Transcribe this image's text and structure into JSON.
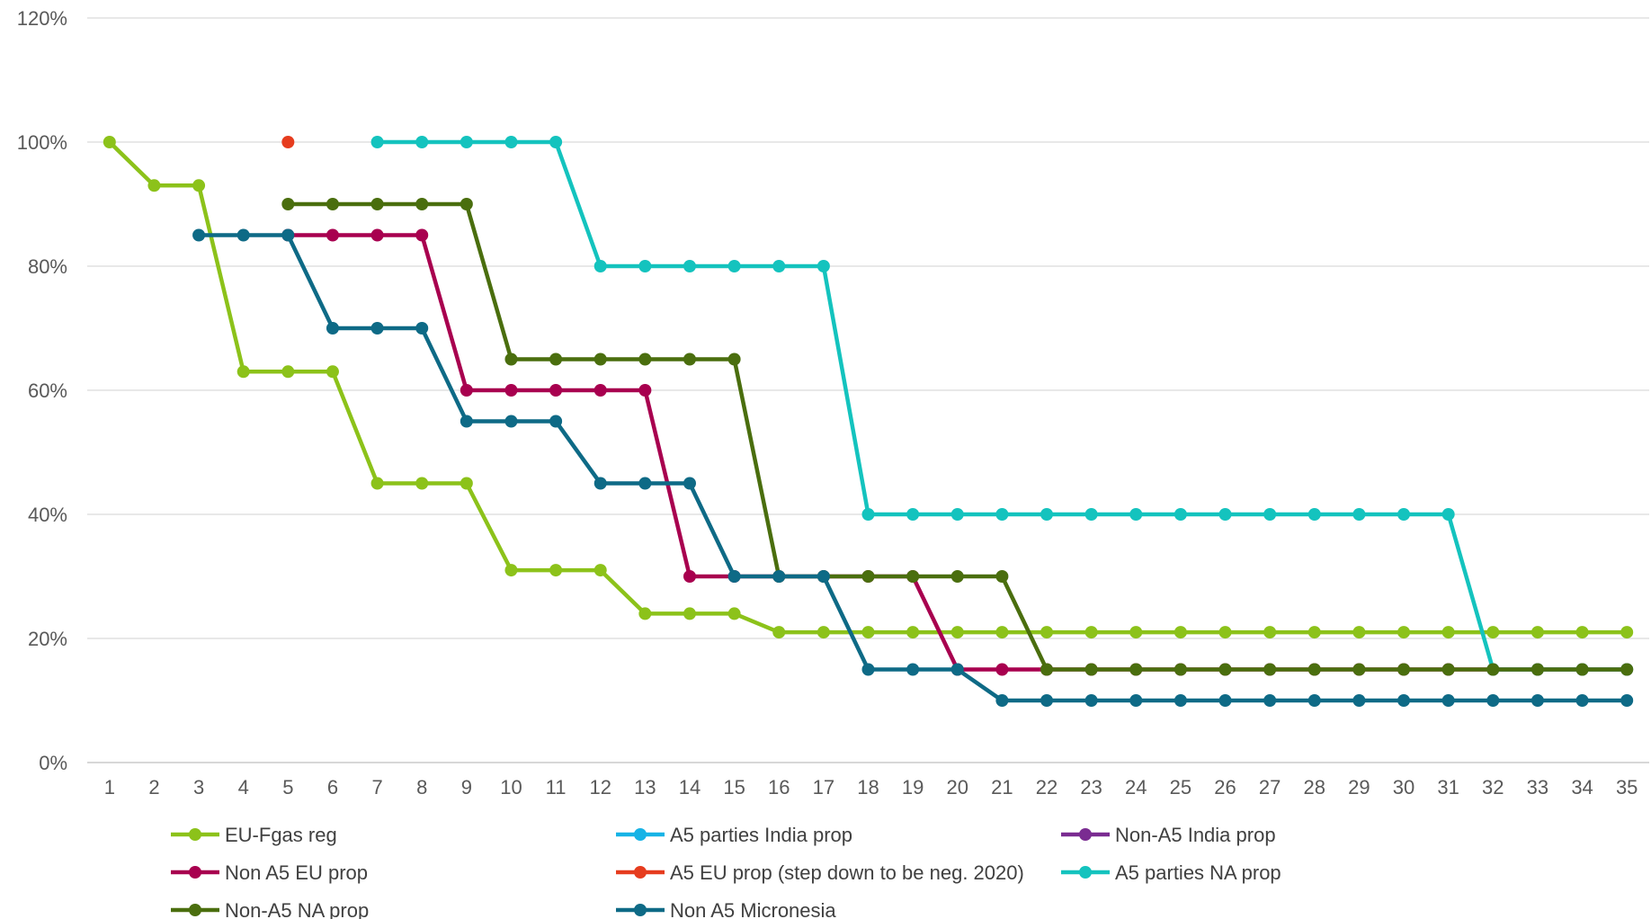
{
  "chart_data": {
    "type": "line",
    "x": [
      1,
      2,
      3,
      4,
      5,
      6,
      7,
      8,
      9,
      10,
      11,
      12,
      13,
      14,
      15,
      16,
      17,
      18,
      19,
      20,
      21,
      22,
      23,
      24,
      25,
      26,
      27,
      28,
      29,
      30,
      31,
      32,
      33,
      34,
      35
    ],
    "ylim": [
      0,
      120
    ],
    "y_ticks": [
      "0%",
      "20%",
      "40%",
      "60%",
      "80%",
      "100%",
      "120%"
    ],
    "x_ticks": [
      "1",
      "2",
      "3",
      "4",
      "5",
      "6",
      "7",
      "8",
      "9",
      "10",
      "11",
      "12",
      "13",
      "14",
      "15",
      "16",
      "17",
      "18",
      "19",
      "20",
      "21",
      "22",
      "23",
      "24",
      "25",
      "26",
      "27",
      "28",
      "29",
      "30",
      "31",
      "32",
      "33",
      "34",
      "35"
    ],
    "grid": true,
    "legend_position": "bottom",
    "series": [
      {
        "name": "EU-Fgas reg",
        "color": "#8cc21a",
        "values": [
          100,
          93,
          93,
          63,
          63,
          63,
          45,
          45,
          45,
          31,
          31,
          31,
          24,
          24,
          24,
          21,
          21,
          21,
          21,
          21,
          21,
          21,
          21,
          21,
          21,
          21,
          21,
          21,
          21,
          21,
          21,
          21,
          21,
          21,
          21
        ]
      },
      {
        "name": "A5 parties India prop",
        "color": "#17b3e6",
        "values": [
          null,
          null,
          null,
          null,
          null,
          null,
          null,
          null,
          null,
          null,
          null,
          null,
          null,
          null,
          null,
          null,
          null,
          null,
          null,
          null,
          null,
          null,
          null,
          null,
          null,
          null,
          null,
          null,
          null,
          null,
          null,
          null,
          null,
          null,
          null
        ]
      },
      {
        "name": "Non-A5 India prop",
        "color": "#7a2c91",
        "values": [
          null,
          null,
          null,
          null,
          null,
          null,
          null,
          null,
          null,
          null,
          null,
          null,
          null,
          null,
          null,
          null,
          null,
          null,
          null,
          null,
          null,
          null,
          null,
          null,
          null,
          null,
          null,
          null,
          null,
          null,
          null,
          null,
          null,
          null,
          null
        ]
      },
      {
        "name": "Non A5 EU prop",
        "color": "#a8004f",
        "values": [
          null,
          null,
          null,
          null,
          85,
          85,
          85,
          85,
          60,
          60,
          60,
          60,
          60,
          30,
          30,
          30,
          30,
          30,
          30,
          15,
          15,
          15,
          15,
          15,
          15,
          15,
          15,
          15,
          15,
          15,
          15,
          15,
          15,
          15,
          15
        ]
      },
      {
        "name": "A5 EU prop (step down to be neg. 2020)",
        "color": "#e63c1e",
        "values": [
          null,
          null,
          null,
          null,
          100,
          null,
          null,
          null,
          null,
          null,
          null,
          null,
          null,
          null,
          null,
          null,
          null,
          null,
          null,
          null,
          null,
          null,
          null,
          null,
          null,
          null,
          null,
          null,
          null,
          null,
          null,
          null,
          null,
          null,
          null
        ]
      },
      {
        "name": "A5 parties NA prop",
        "color": "#14c3be",
        "values": [
          null,
          null,
          null,
          null,
          null,
          null,
          100,
          100,
          100,
          100,
          100,
          80,
          80,
          80,
          80,
          80,
          80,
          40,
          40,
          40,
          40,
          40,
          40,
          40,
          40,
          40,
          40,
          40,
          40,
          40,
          40,
          15,
          15,
          15,
          15
        ]
      },
      {
        "name": "Non-A5 NA prop",
        "color": "#4a6e0e",
        "values": [
          null,
          null,
          null,
          null,
          90,
          90,
          90,
          90,
          90,
          65,
          65,
          65,
          65,
          65,
          65,
          30,
          30,
          30,
          30,
          30,
          30,
          15,
          15,
          15,
          15,
          15,
          15,
          15,
          15,
          15,
          15,
          15,
          15,
          15,
          15
        ]
      },
      {
        "name": "Non A5 Micronesia",
        "color": "#0e6a86",
        "values": [
          null,
          null,
          85,
          85,
          85,
          70,
          70,
          70,
          55,
          55,
          55,
          45,
          45,
          45,
          30,
          30,
          30,
          15,
          15,
          15,
          10,
          10,
          10,
          10,
          10,
          10,
          10,
          10,
          10,
          10,
          10,
          10,
          10,
          10,
          10
        ]
      }
    ]
  }
}
